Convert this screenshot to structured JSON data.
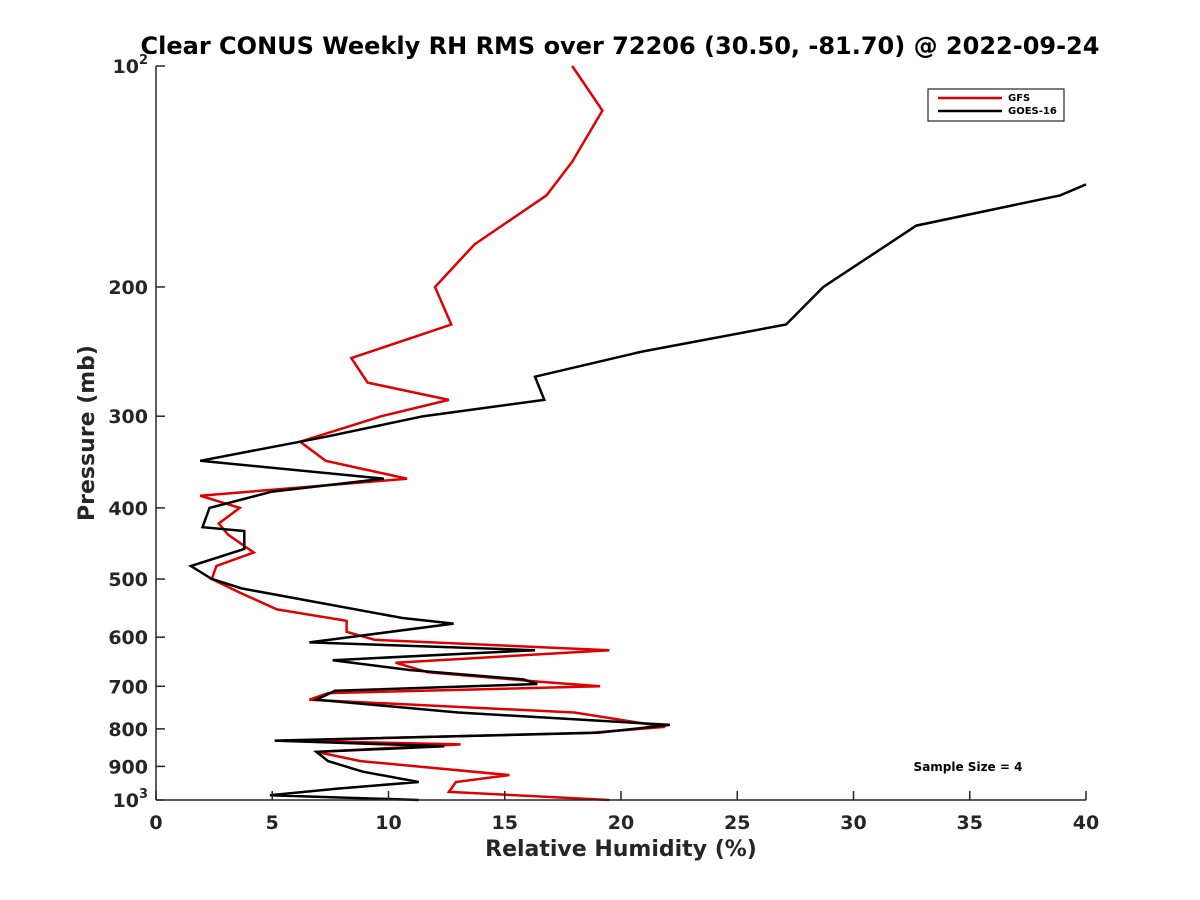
{
  "chart_data": {
    "type": "line",
    "title": "Clear CONUS Weekly RH RMS over 72206 (30.50, -81.70) @ 2022-09-24",
    "xlabel": "Relative Humidity (%)",
    "ylabel": "Pressure (mb)",
    "xlim": [
      0,
      40
    ],
    "ylim": [
      100,
      1000
    ],
    "yscale": "log",
    "y_reversed": true,
    "xticks": [
      0,
      5,
      10,
      15,
      20,
      25,
      30,
      35,
      40
    ],
    "yticks": [
      {
        "value": 100,
        "base": "10",
        "exp": "2"
      },
      {
        "value": 200,
        "label": "200"
      },
      {
        "value": 300,
        "label": "300"
      },
      {
        "value": 400,
        "label": "400"
      },
      {
        "value": 500,
        "label": "500"
      },
      {
        "value": 600,
        "label": "600"
      },
      {
        "value": 700,
        "label": "700"
      },
      {
        "value": 800,
        "label": "800"
      },
      {
        "value": 900,
        "label": "900"
      },
      {
        "value": 1000,
        "base": "10",
        "exp": "3"
      }
    ],
    "grid": false,
    "legend_position": "top-right",
    "annotation": "Sample Size = 4",
    "series": [
      {
        "name": "GFS",
        "color": "#e00000",
        "points": [
          {
            "x": 17.9,
            "y": 100
          },
          {
            "x": 19.2,
            "y": 115
          },
          {
            "x": 17.9,
            "y": 135
          },
          {
            "x": 16.8,
            "y": 150
          },
          {
            "x": 13.7,
            "y": 175
          },
          {
            "x": 12.0,
            "y": 200
          },
          {
            "x": 12.7,
            "y": 225
          },
          {
            "x": 8.4,
            "y": 250
          },
          {
            "x": 9.1,
            "y": 270
          },
          {
            "x": 12.6,
            "y": 285
          },
          {
            "x": 9.7,
            "y": 300
          },
          {
            "x": 6.2,
            "y": 325
          },
          {
            "x": 7.3,
            "y": 345
          },
          {
            "x": 10.8,
            "y": 365
          },
          {
            "x": 1.9,
            "y": 385
          },
          {
            "x": 3.6,
            "y": 400
          },
          {
            "x": 2.7,
            "y": 420
          },
          {
            "x": 3.1,
            "y": 435
          },
          {
            "x": 4.2,
            "y": 460
          },
          {
            "x": 2.6,
            "y": 480
          },
          {
            "x": 2.4,
            "y": 500
          },
          {
            "x": 3.5,
            "y": 520
          },
          {
            "x": 5.2,
            "y": 550
          },
          {
            "x": 8.2,
            "y": 570
          },
          {
            "x": 8.2,
            "y": 590
          },
          {
            "x": 9.4,
            "y": 605
          },
          {
            "x": 19.5,
            "y": 625
          },
          {
            "x": 10.3,
            "y": 650
          },
          {
            "x": 11.7,
            "y": 670
          },
          {
            "x": 16.5,
            "y": 690
          },
          {
            "x": 19.1,
            "y": 700
          },
          {
            "x": 7.4,
            "y": 715
          },
          {
            "x": 6.6,
            "y": 730
          },
          {
            "x": 18.0,
            "y": 760
          },
          {
            "x": 21.9,
            "y": 795
          },
          {
            "x": 18.7,
            "y": 810
          },
          {
            "x": 5.6,
            "y": 830
          },
          {
            "x": 13.1,
            "y": 840
          },
          {
            "x": 6.9,
            "y": 860
          },
          {
            "x": 8.8,
            "y": 885
          },
          {
            "x": 15.2,
            "y": 925
          },
          {
            "x": 12.9,
            "y": 945
          },
          {
            "x": 12.6,
            "y": 975
          },
          {
            "x": 19.5,
            "y": 1000
          }
        ]
      },
      {
        "name": "GOES-16",
        "color": "#000000",
        "points": [
          {
            "x": 40.0,
            "y": 145
          },
          {
            "x": 38.9,
            "y": 150
          },
          {
            "x": 32.7,
            "y": 165
          },
          {
            "x": 28.7,
            "y": 200
          },
          {
            "x": 27.1,
            "y": 225
          },
          {
            "x": 20.9,
            "y": 245
          },
          {
            "x": 16.3,
            "y": 265
          },
          {
            "x": 16.7,
            "y": 285
          },
          {
            "x": 11.5,
            "y": 300
          },
          {
            "x": 7.3,
            "y": 320
          },
          {
            "x": 1.9,
            "y": 345
          },
          {
            "x": 9.8,
            "y": 365
          },
          {
            "x": 5.0,
            "y": 380
          },
          {
            "x": 2.3,
            "y": 400
          },
          {
            "x": 2.0,
            "y": 425
          },
          {
            "x": 3.8,
            "y": 430
          },
          {
            "x": 3.8,
            "y": 455
          },
          {
            "x": 1.5,
            "y": 480
          },
          {
            "x": 2.4,
            "y": 500
          },
          {
            "x": 3.7,
            "y": 515
          },
          {
            "x": 10.6,
            "y": 565
          },
          {
            "x": 12.8,
            "y": 575
          },
          {
            "x": 6.6,
            "y": 610
          },
          {
            "x": 16.3,
            "y": 625
          },
          {
            "x": 7.6,
            "y": 645
          },
          {
            "x": 10.9,
            "y": 665
          },
          {
            "x": 15.8,
            "y": 685
          },
          {
            "x": 16.4,
            "y": 695
          },
          {
            "x": 7.7,
            "y": 710
          },
          {
            "x": 6.9,
            "y": 730
          },
          {
            "x": 13.0,
            "y": 760
          },
          {
            "x": 22.1,
            "y": 790
          },
          {
            "x": 19.0,
            "y": 810
          },
          {
            "x": 5.1,
            "y": 830
          },
          {
            "x": 12.4,
            "y": 845
          },
          {
            "x": 6.9,
            "y": 860
          },
          {
            "x": 7.4,
            "y": 885
          },
          {
            "x": 8.9,
            "y": 915
          },
          {
            "x": 11.3,
            "y": 945
          },
          {
            "x": 7.8,
            "y": 965
          },
          {
            "x": 4.9,
            "y": 985
          },
          {
            "x": 11.3,
            "y": 1000
          }
        ]
      }
    ]
  }
}
